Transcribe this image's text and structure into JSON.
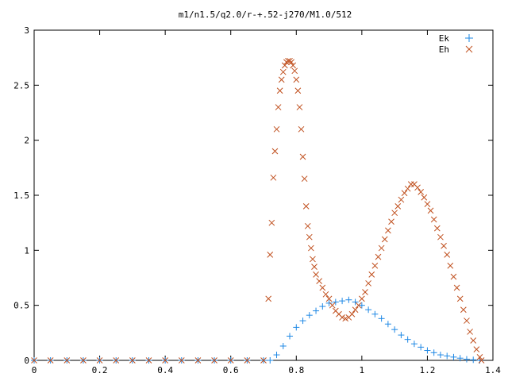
{
  "chart_data": {
    "type": "scatter",
    "title": "m1/n1.5/q2.0/r-+.52-j270/M1.0/512",
    "xlabel": "",
    "ylabel": "",
    "xlim": [
      0,
      1.4
    ],
    "ylim": [
      0,
      3
    ],
    "x_ticks": [
      "0",
      "0.2",
      "0.4",
      "0.6",
      "0.8",
      "1",
      "1.2",
      "1.4"
    ],
    "y_ticks": [
      "0",
      "0.5",
      "1",
      "1.5",
      "2",
      "2.5",
      "3"
    ],
    "grid": false,
    "legend_position": "top-right",
    "series": [
      {
        "name": "Ek",
        "marker": "plus",
        "color": "#1e88e5",
        "points": [
          [
            0.0,
            0.0
          ],
          [
            0.05,
            0.0
          ],
          [
            0.1,
            0.0
          ],
          [
            0.15,
            0.0
          ],
          [
            0.2,
            0.0
          ],
          [
            0.25,
            0.0
          ],
          [
            0.3,
            0.0
          ],
          [
            0.35,
            0.0
          ],
          [
            0.4,
            0.0
          ],
          [
            0.45,
            0.0
          ],
          [
            0.5,
            0.0
          ],
          [
            0.55,
            0.0
          ],
          [
            0.6,
            0.0
          ],
          [
            0.65,
            0.0
          ],
          [
            0.7,
            0.0
          ],
          [
            0.72,
            0.0
          ],
          [
            0.74,
            0.05
          ],
          [
            0.76,
            0.13
          ],
          [
            0.78,
            0.22
          ],
          [
            0.8,
            0.3
          ],
          [
            0.82,
            0.36
          ],
          [
            0.84,
            0.41
          ],
          [
            0.86,
            0.45
          ],
          [
            0.88,
            0.49
          ],
          [
            0.9,
            0.52
          ],
          [
            0.92,
            0.53
          ],
          [
            0.94,
            0.54
          ],
          [
            0.96,
            0.55
          ],
          [
            0.98,
            0.53
          ],
          [
            1.0,
            0.5
          ],
          [
            1.02,
            0.46
          ],
          [
            1.04,
            0.42
          ],
          [
            1.06,
            0.38
          ],
          [
            1.08,
            0.33
          ],
          [
            1.1,
            0.28
          ],
          [
            1.12,
            0.23
          ],
          [
            1.14,
            0.19
          ],
          [
            1.16,
            0.15
          ],
          [
            1.18,
            0.12
          ],
          [
            1.2,
            0.09
          ],
          [
            1.22,
            0.07
          ],
          [
            1.24,
            0.05
          ],
          [
            1.26,
            0.04
          ],
          [
            1.28,
            0.03
          ],
          [
            1.3,
            0.02
          ],
          [
            1.32,
            0.01
          ],
          [
            1.34,
            0.005
          ],
          [
            1.36,
            0.0
          ]
        ]
      },
      {
        "name": "Eh",
        "marker": "cross",
        "color": "#c0501f",
        "points": [
          [
            0.0,
            0.0
          ],
          [
            0.05,
            0.0
          ],
          [
            0.1,
            0.0
          ],
          [
            0.15,
            0.0
          ],
          [
            0.2,
            0.0
          ],
          [
            0.25,
            0.0
          ],
          [
            0.3,
            0.0
          ],
          [
            0.35,
            0.0
          ],
          [
            0.4,
            0.0
          ],
          [
            0.45,
            0.0
          ],
          [
            0.5,
            0.0
          ],
          [
            0.55,
            0.0
          ],
          [
            0.6,
            0.0
          ],
          [
            0.65,
            0.0
          ],
          [
            0.7,
            0.0
          ],
          [
            0.715,
            0.56
          ],
          [
            0.72,
            0.96
          ],
          [
            0.725,
            1.25
          ],
          [
            0.73,
            1.66
          ],
          [
            0.735,
            1.9
          ],
          [
            0.74,
            2.1
          ],
          [
            0.745,
            2.3
          ],
          [
            0.75,
            2.45
          ],
          [
            0.755,
            2.55
          ],
          [
            0.76,
            2.62
          ],
          [
            0.765,
            2.68
          ],
          [
            0.77,
            2.71
          ],
          [
            0.775,
            2.72
          ],
          [
            0.78,
            2.72
          ],
          [
            0.785,
            2.71
          ],
          [
            0.79,
            2.68
          ],
          [
            0.795,
            2.63
          ],
          [
            0.8,
            2.55
          ],
          [
            0.805,
            2.45
          ],
          [
            0.81,
            2.3
          ],
          [
            0.815,
            2.1
          ],
          [
            0.82,
            1.85
          ],
          [
            0.825,
            1.65
          ],
          [
            0.83,
            1.4
          ],
          [
            0.835,
            1.22
          ],
          [
            0.84,
            1.12
          ],
          [
            0.845,
            1.02
          ],
          [
            0.85,
            0.92
          ],
          [
            0.855,
            0.85
          ],
          [
            0.86,
            0.78
          ],
          [
            0.87,
            0.72
          ],
          [
            0.88,
            0.66
          ],
          [
            0.89,
            0.6
          ],
          [
            0.9,
            0.56
          ],
          [
            0.91,
            0.5
          ],
          [
            0.92,
            0.45
          ],
          [
            0.93,
            0.42
          ],
          [
            0.94,
            0.39
          ],
          [
            0.95,
            0.38
          ],
          [
            0.96,
            0.39
          ],
          [
            0.97,
            0.42
          ],
          [
            0.98,
            0.46
          ],
          [
            0.99,
            0.5
          ],
          [
            1.0,
            0.56
          ],
          [
            1.01,
            0.62
          ],
          [
            1.02,
            0.7
          ],
          [
            1.03,
            0.78
          ],
          [
            1.04,
            0.86
          ],
          [
            1.05,
            0.94
          ],
          [
            1.06,
            1.02
          ],
          [
            1.07,
            1.1
          ],
          [
            1.08,
            1.18
          ],
          [
            1.09,
            1.26
          ],
          [
            1.1,
            1.34
          ],
          [
            1.11,
            1.4
          ],
          [
            1.12,
            1.46
          ],
          [
            1.13,
            1.52
          ],
          [
            1.14,
            1.56
          ],
          [
            1.15,
            1.6
          ],
          [
            1.16,
            1.6
          ],
          [
            1.17,
            1.57
          ],
          [
            1.18,
            1.53
          ],
          [
            1.19,
            1.48
          ],
          [
            1.2,
            1.42
          ],
          [
            1.21,
            1.36
          ],
          [
            1.22,
            1.28
          ],
          [
            1.23,
            1.2
          ],
          [
            1.24,
            1.12
          ],
          [
            1.25,
            1.04
          ],
          [
            1.26,
            0.96
          ],
          [
            1.27,
            0.86
          ],
          [
            1.28,
            0.76
          ],
          [
            1.29,
            0.66
          ],
          [
            1.3,
            0.56
          ],
          [
            1.31,
            0.46
          ],
          [
            1.32,
            0.36
          ],
          [
            1.33,
            0.26
          ],
          [
            1.34,
            0.18
          ],
          [
            1.35,
            0.1
          ],
          [
            1.36,
            0.03
          ],
          [
            1.365,
            0.0
          ]
        ]
      }
    ]
  }
}
